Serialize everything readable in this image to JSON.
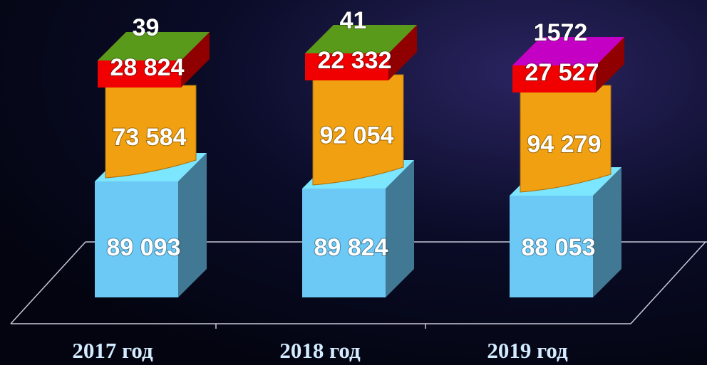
{
  "chart_data": {
    "type": "bar3d",
    "categories": [
      "2017 год",
      "2018 год",
      "2019 год"
    ],
    "series": [
      {
        "color": "#6cc8f5",
        "values": [
          89093,
          89824,
          88053
        ],
        "value_labels": [
          "89 093",
          "89 824",
          "88 053"
        ]
      },
      {
        "color": "#f0a010",
        "values": [
          73584,
          92054,
          94279
        ],
        "value_labels": [
          "73 584",
          "92 054",
          "94 279"
        ]
      },
      {
        "color": "#f00000",
        "values": [
          28824,
          22332,
          27527
        ],
        "value_labels": [
          "28 824",
          "22 332",
          "27 527"
        ]
      },
      {
        "colors": [
          "#5a9a1a",
          "#5a9a1a",
          "#c400c4"
        ],
        "values": [
          39,
          41,
          1572
        ]
      }
    ]
  }
}
